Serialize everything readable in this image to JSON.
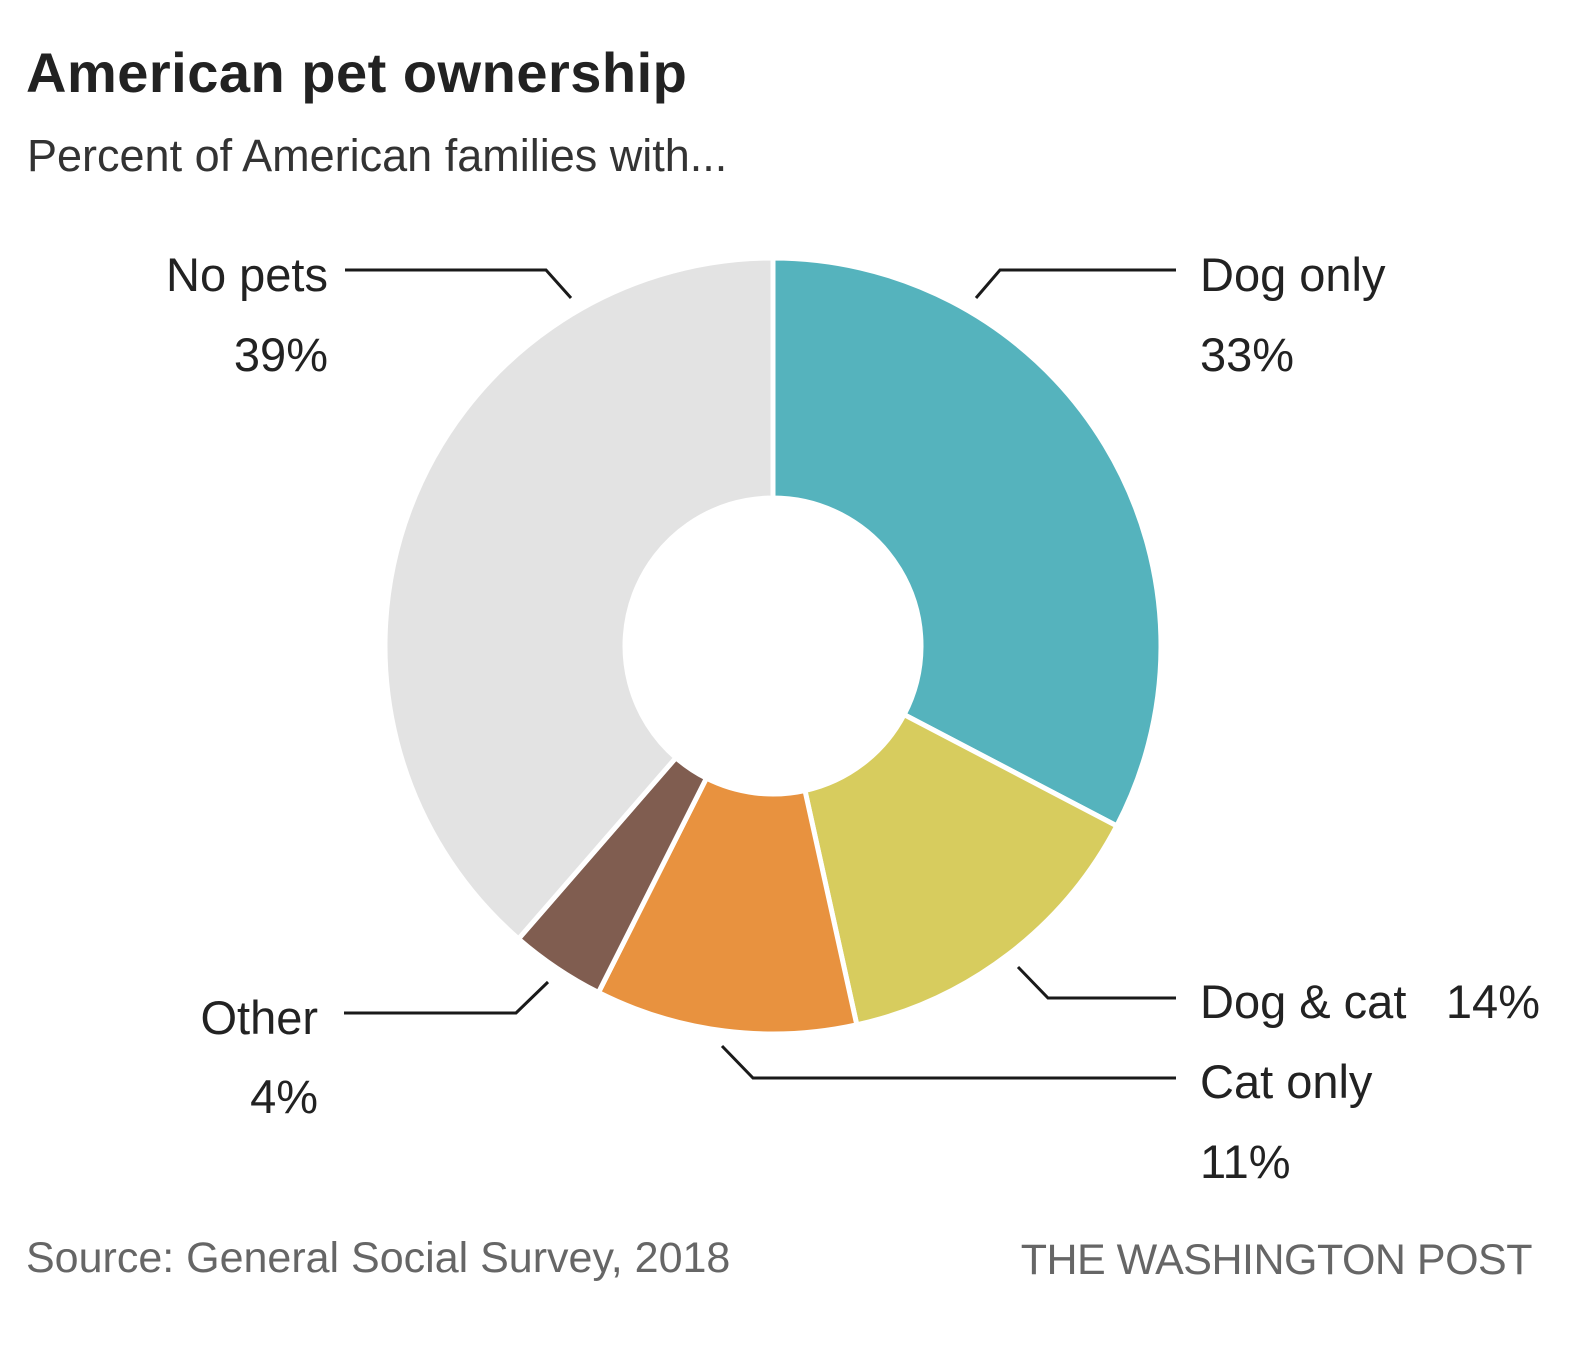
{
  "chart_data": {
    "type": "pie",
    "style": "donut",
    "title": "American pet ownership",
    "subtitle": "Percent of American families with...",
    "slices": [
      {
        "label": "Dog only",
        "value": 33,
        "value_text": "33%",
        "color": "#55b3bd"
      },
      {
        "label": "Dog & cat",
        "value": 14,
        "value_text": "14%",
        "color": "#d7cc5e"
      },
      {
        "label": "Cat only",
        "value": 11,
        "value_text": "11%",
        "color": "#e8923f"
      },
      {
        "label": "Other",
        "value": 4,
        "value_text": "4%",
        "color": "#805d50"
      },
      {
        "label": "No pets",
        "value": 39,
        "value_text": "39%",
        "color": "#e3e3e3"
      }
    ],
    "source": "Source: General Social Survey, 2018",
    "credit": "THE WASHINGTON POST"
  }
}
